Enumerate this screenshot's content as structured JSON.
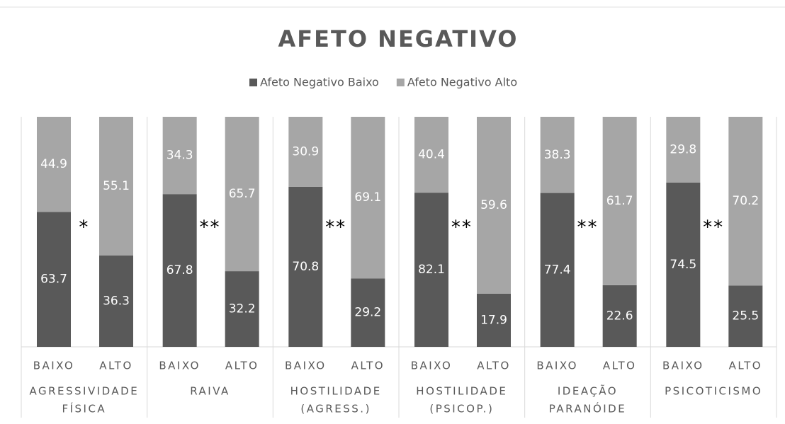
{
  "chart_data": {
    "type": "bar",
    "stack": "percent",
    "title": "AFETO NEGATIVO",
    "categories": [
      "BAIXO",
      "ALTO",
      "BAIXO",
      "ALTO",
      "BAIXO",
      "ALTO",
      "BAIXO",
      "ALTO",
      "BAIXO",
      "ALTO",
      "BAIXO",
      "ALTO"
    ],
    "groups": [
      {
        "label": [
          "AGRESSIVIDADE",
          "FÍSICA"
        ],
        "annotation": "*"
      },
      {
        "label": [
          "RAIVA"
        ],
        "annotation": "**"
      },
      {
        "label": [
          "HOSTILIDADE",
          "(AGRESS.)"
        ],
        "annotation": "**"
      },
      {
        "label": [
          "HOSTILIDADE",
          "(PSICOP.)"
        ],
        "annotation": "**"
      },
      {
        "label": [
          "IDEAÇÃO",
          "PARANÓIDE"
        ],
        "annotation": "**"
      },
      {
        "label": [
          "PSICOTICISMO"
        ],
        "annotation": "**"
      }
    ],
    "series": [
      {
        "name": "Afeto Negativo Baixo",
        "color": "#595959",
        "values": [
          63.7,
          36.3,
          67.8,
          32.2,
          70.8,
          29.2,
          82.1,
          17.9,
          77.4,
          22.6,
          74.5,
          25.5
        ]
      },
      {
        "name": "Afeto Negativo Alto",
        "color": "#a6a6a6",
        "values": [
          44.9,
          55.1,
          34.3,
          65.7,
          30.9,
          69.1,
          40.4,
          59.6,
          38.3,
          61.7,
          29.8,
          70.2
        ]
      }
    ],
    "legend": "top"
  }
}
